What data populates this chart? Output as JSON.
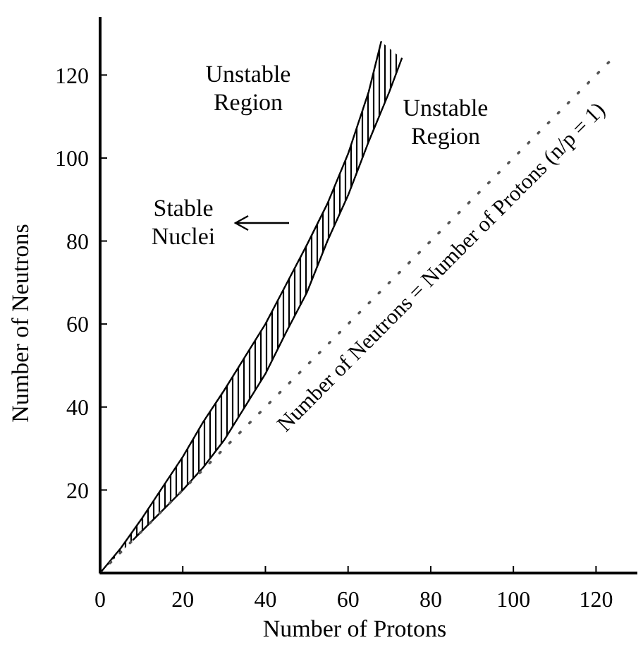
{
  "chart_data": {
    "type": "line",
    "xlabel": "Number of Protons",
    "ylabel": "Number of Neutrons",
    "xlim": [
      0,
      130
    ],
    "ylim": [
      0,
      134
    ],
    "xticks": [
      0,
      20,
      40,
      60,
      80,
      100,
      120
    ],
    "yticks": [
      {
        "value": 0,
        "label": null
      },
      20,
      40,
      60,
      80,
      100,
      120
    ],
    "series": [
      {
        "color": "#000000",
        "x": [
          0,
          5,
          10,
          15,
          20,
          25,
          30,
          35,
          40,
          45,
          50,
          55,
          60,
          65,
          68
        ],
        "values": [
          0,
          6,
          13,
          20.5,
          28,
          36.5,
          44,
          52,
          60,
          69.5,
          79,
          89,
          101,
          116,
          128
        ]
      },
      {
        "color": "#000000",
        "x": [
          8,
          10,
          15,
          20,
          25,
          30,
          35,
          40,
          45,
          50,
          55,
          60,
          65,
          70,
          73
        ],
        "values": [
          8,
          10,
          15,
          20,
          25.5,
          32,
          40,
          48,
          58,
          67.5,
          80,
          91,
          104,
          116,
          124
        ]
      },
      {
        "name": "Number of Neutrons = Number of Protons (n/p = 1)",
        "color": "#555555",
        "line_style": "dotted",
        "x": [
          0,
          124
        ],
        "values": [
          0,
          124
        ]
      }
    ],
    "annotations": [
      "Unstable Region",
      "Unstable Region",
      "Stable Nuclei"
    ]
  }
}
